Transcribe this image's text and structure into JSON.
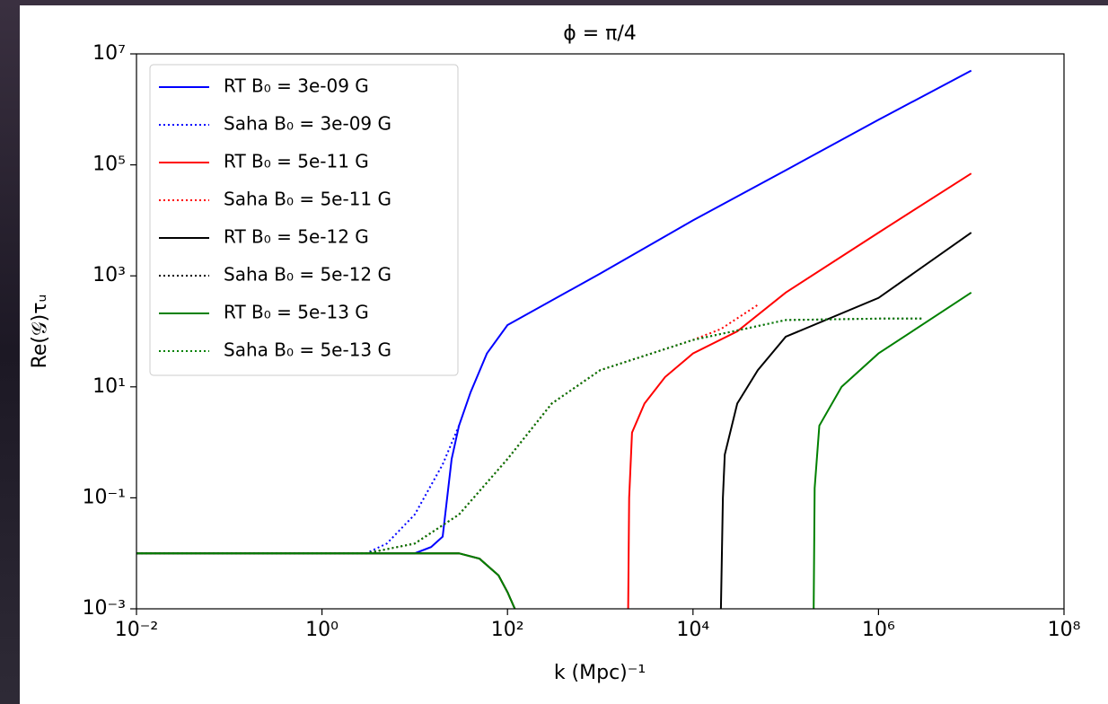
{
  "chart_data": {
    "type": "line",
    "title": "ϕ = π/4",
    "x_label": "k (Mpc)⁻¹",
    "y_label": "Re(𝒢)τᵤ",
    "xscale": "log",
    "yscale": "log",
    "legend": "upper left",
    "xlim": [
      0.01,
      100000000
    ],
    "ylim": [
      0.001,
      10000000
    ],
    "xticks": [
      {
        "value": 0.01,
        "label": "10⁻²"
      },
      {
        "value": 1,
        "label": "10⁰"
      },
      {
        "value": 100,
        "label": "10²"
      },
      {
        "value": 10000,
        "label": "10⁴"
      },
      {
        "value": 1000000,
        "label": "10⁶"
      },
      {
        "value": 100000000,
        "label": "10⁸"
      }
    ],
    "yticks": [
      {
        "value": 0.001,
        "label": "10⁻³"
      },
      {
        "value": 0.1,
        "label": "10⁻¹"
      },
      {
        "value": 10,
        "label": "10¹"
      },
      {
        "value": 1000,
        "label": "10³"
      },
      {
        "value": 100000,
        "label": "10⁵"
      },
      {
        "value": 10000000,
        "label": "10⁷"
      }
    ],
    "series": [
      {
        "name": "RT B₀ = 3e-09 G",
        "color": "#0000ff",
        "linestyle": "solid",
        "x": [
          0.01,
          1,
          10,
          15,
          20,
          25,
          30,
          40,
          60,
          100,
          1000,
          10000,
          100000,
          1000000,
          10000000
        ],
        "values": [
          0.01,
          0.01,
          0.01,
          0.013,
          0.02,
          0.5,
          2,
          8,
          40,
          130,
          1100,
          10000,
          80000,
          650000,
          5000000
        ]
      },
      {
        "name": "Saha B₀ = 3e-09 G",
        "color": "#0000ff",
        "linestyle": "dotted",
        "x": [
          0.01,
          3,
          5,
          10,
          20,
          30
        ],
        "values": [
          0.01,
          0.01,
          0.015,
          0.05,
          0.4,
          2
        ]
      },
      {
        "name": "RT B₀ = 5e-11 G",
        "color": "#ff0000",
        "linestyle": "solid",
        "x": [
          0.01,
          30,
          50,
          80,
          100,
          120,
          130,
          2000,
          2050,
          2200,
          3000,
          5000,
          10000,
          30000,
          100000,
          1000000,
          10000000
        ],
        "values": [
          0.01,
          0.01,
          0.008,
          0.004,
          0.002,
          0.001,
          null,
          0.001,
          0.1,
          1.5,
          5,
          15,
          40,
          100,
          500,
          6000,
          70000
        ]
      },
      {
        "name": "Saha B₀ = 5e-11 G",
        "color": "#ff0000",
        "linestyle": "dotted",
        "x": [
          0.01,
          3,
          10,
          30,
          100,
          300,
          1000,
          10000,
          20000,
          50000
        ],
        "values": [
          0.01,
          0.01,
          0.015,
          0.05,
          0.5,
          5,
          20,
          70,
          110,
          300
        ]
      },
      {
        "name": "RT B₀ = 5e-12 G",
        "color": "#000000",
        "linestyle": "solid",
        "x": [
          0.01,
          30,
          50,
          80,
          100,
          120,
          130,
          20000,
          21000,
          22000,
          30000,
          50000,
          100000,
          1000000,
          10000000
        ],
        "values": [
          0.01,
          0.01,
          0.008,
          0.004,
          0.002,
          0.001,
          null,
          0.001,
          0.1,
          0.6,
          5,
          20,
          80,
          400,
          6000
        ]
      },
      {
        "name": "Saha B₀ = 5e-12 G",
        "color": "#000000",
        "linestyle": "dotted",
        "x": [
          0.01,
          3,
          10,
          30,
          100,
          300,
          1000,
          10000,
          100000,
          1000000,
          3000000
        ],
        "values": [
          0.01,
          0.01,
          0.015,
          0.05,
          0.5,
          5,
          20,
          70,
          160,
          170,
          170
        ]
      },
      {
        "name": "RT B₀ = 5e-13 G",
        "color": "#008000",
        "linestyle": "solid",
        "x": [
          0.01,
          30,
          50,
          80,
          100,
          120,
          130,
          200000,
          205000,
          230000,
          400000,
          1000000,
          10000000
        ],
        "values": [
          0.01,
          0.01,
          0.008,
          0.004,
          0.002,
          0.001,
          null,
          0.001,
          0.15,
          2,
          10,
          40,
          500
        ]
      },
      {
        "name": "Saha B₀ = 5e-13 G",
        "color": "#008000",
        "linestyle": "dotted",
        "x": [
          0.01,
          3,
          10,
          30,
          100,
          300,
          1000,
          10000,
          100000,
          1000000,
          3000000
        ],
        "values": [
          0.01,
          0.01,
          0.015,
          0.05,
          0.5,
          5,
          20,
          70,
          160,
          170,
          170
        ]
      }
    ]
  }
}
